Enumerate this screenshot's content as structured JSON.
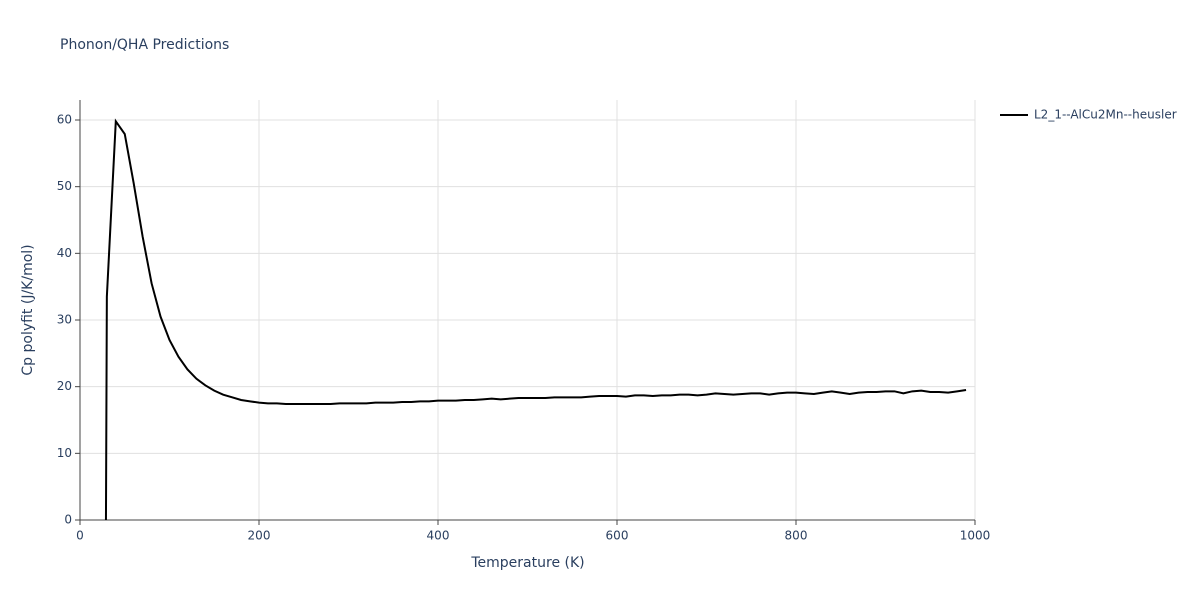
{
  "chart_data": {
    "type": "line",
    "title": "Phonon/QHA Predictions",
    "x_label": "Temperature (K)",
    "y_label": "Cp polyfit (J/K/mol)",
    "x": [
      29,
      30,
      40,
      50,
      60,
      70,
      80,
      90,
      100,
      110,
      120,
      130,
      140,
      150,
      160,
      170,
      180,
      190,
      200,
      210,
      220,
      230,
      240,
      250,
      260,
      270,
      280,
      290,
      300,
      310,
      320,
      330,
      340,
      350,
      360,
      370,
      380,
      390,
      400,
      410,
      420,
      430,
      440,
      450,
      460,
      470,
      480,
      490,
      500,
      510,
      520,
      530,
      540,
      550,
      560,
      570,
      580,
      590,
      600,
      610,
      620,
      630,
      640,
      650,
      660,
      670,
      680,
      690,
      700,
      710,
      720,
      730,
      740,
      750,
      760,
      770,
      780,
      790,
      800,
      810,
      820,
      830,
      840,
      850,
      860,
      870,
      880,
      890,
      900,
      910,
      920,
      930,
      940,
      950,
      960,
      970,
      980,
      990
    ],
    "series": [
      {
        "name": "L2_1--AlCu2Mn--heusler",
        "color": "#000000",
        "values": [
          0,
          33.5,
          59.8,
          57.9,
          50.5,
          42.5,
          35.5,
          30.5,
          27,
          24.5,
          22.6,
          21.2,
          20.2,
          19.4,
          18.8,
          18.4,
          18,
          17.8,
          17.6,
          17.5,
          17.5,
          17.4,
          17.4,
          17.4,
          17.4,
          17.4,
          17.4,
          17.5,
          17.5,
          17.5,
          17.5,
          17.6,
          17.6,
          17.6,
          17.7,
          17.7,
          17.8,
          17.8,
          17.9,
          17.9,
          17.9,
          18,
          18,
          18.1,
          18.2,
          18.1,
          18.2,
          18.3,
          18.3,
          18.3,
          18.3,
          18.4,
          18.4,
          18.4,
          18.4,
          18.5,
          18.6,
          18.6,
          18.6,
          18.5,
          18.7,
          18.7,
          18.6,
          18.7,
          18.7,
          18.8,
          18.8,
          18.7,
          18.8,
          19,
          18.9,
          18.8,
          18.9,
          19,
          19,
          18.8,
          19,
          19.1,
          19.1,
          19,
          18.9,
          19.1,
          19.3,
          19.1,
          18.9,
          19.1,
          19.2,
          19.2,
          19.3,
          19.3,
          19,
          19.3,
          19.4,
          19.2,
          19.2,
          19.1,
          19.3,
          19.5
        ]
      }
    ],
    "xlim": [
      0,
      1000
    ],
    "xticks": [
      0,
      200,
      400,
      600,
      800,
      1000
    ],
    "ylim": [
      0,
      63
    ],
    "yticks": [
      0,
      10,
      20,
      30,
      40,
      50,
      60
    ],
    "grid": true
  }
}
